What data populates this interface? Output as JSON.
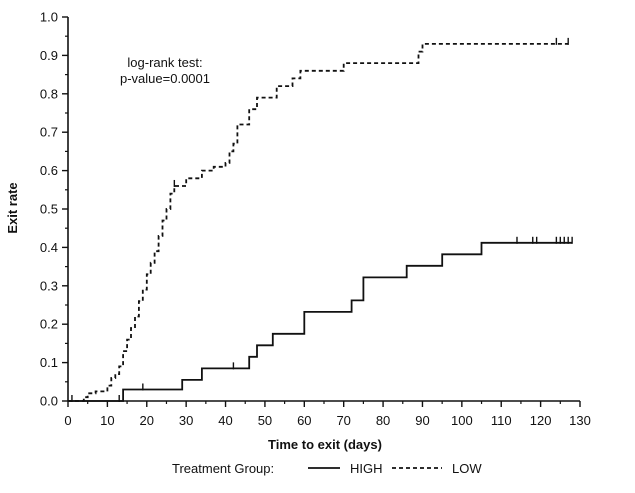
{
  "chart_data": {
    "type": "line",
    "title": "",
    "xlabel": "Time to exit (days)",
    "ylabel": "Exit rate",
    "xlim": [
      0,
      130
    ],
    "ylim": [
      0,
      1.0
    ],
    "x_ticks": [
      0,
      10,
      20,
      30,
      40,
      50,
      60,
      70,
      80,
      90,
      100,
      110,
      120,
      130
    ],
    "y_ticks": [
      "0.0",
      "0.1",
      "0.2",
      "0.3",
      "0.4",
      "0.5",
      "0.6",
      "0.7",
      "0.8",
      "0.9",
      "1.0"
    ],
    "grid": false,
    "annotation": [
      "log-rank test:",
      "p-value=0.0001"
    ],
    "legend": {
      "title": "Treatment Group:",
      "placement": "bottom"
    },
    "series": [
      {
        "name": "HIGH",
        "style": "solid",
        "steps": [
          [
            0,
            0
          ],
          [
            14,
            0.03
          ],
          [
            29,
            0.055
          ],
          [
            34,
            0.085
          ],
          [
            46,
            0.115
          ],
          [
            48,
            0.145
          ],
          [
            52,
            0.175
          ],
          [
            60,
            0.232
          ],
          [
            72,
            0.262
          ],
          [
            75,
            0.322
          ],
          [
            86,
            0.352
          ],
          [
            95,
            0.382
          ],
          [
            105,
            0.412
          ],
          [
            128,
            0.412
          ]
        ],
        "censored": [
          1,
          13,
          19,
          42,
          114,
          118,
          119,
          124,
          125,
          126,
          127,
          128
        ]
      },
      {
        "name": "LOW",
        "style": "dashed",
        "steps": [
          [
            0,
            0
          ],
          [
            4,
            0.01
          ],
          [
            5,
            0.02
          ],
          [
            7,
            0.025
          ],
          [
            10,
            0.04
          ],
          [
            11,
            0.06
          ],
          [
            12,
            0.07
          ],
          [
            13,
            0.09
          ],
          [
            14,
            0.13
          ],
          [
            15,
            0.16
          ],
          [
            16,
            0.19
          ],
          [
            17,
            0.22
          ],
          [
            18,
            0.26
          ],
          [
            19,
            0.29
          ],
          [
            20,
            0.33
          ],
          [
            21,
            0.36
          ],
          [
            22,
            0.39
          ],
          [
            23,
            0.43
          ],
          [
            24,
            0.47
          ],
          [
            25,
            0.5
          ],
          [
            26,
            0.54
          ],
          [
            27,
            0.56
          ],
          [
            30,
            0.58
          ],
          [
            34,
            0.6
          ],
          [
            37,
            0.61
          ],
          [
            40,
            0.62
          ],
          [
            41,
            0.65
          ],
          [
            42,
            0.67
          ],
          [
            43,
            0.72
          ],
          [
            46,
            0.76
          ],
          [
            48,
            0.79
          ],
          [
            53,
            0.82
          ],
          [
            57,
            0.84
          ],
          [
            59,
            0.86
          ],
          [
            70,
            0.88
          ],
          [
            89,
            0.91
          ],
          [
            90,
            0.93
          ],
          [
            127,
            0.93
          ]
        ],
        "censored": [
          27,
          124,
          127
        ]
      }
    ]
  }
}
